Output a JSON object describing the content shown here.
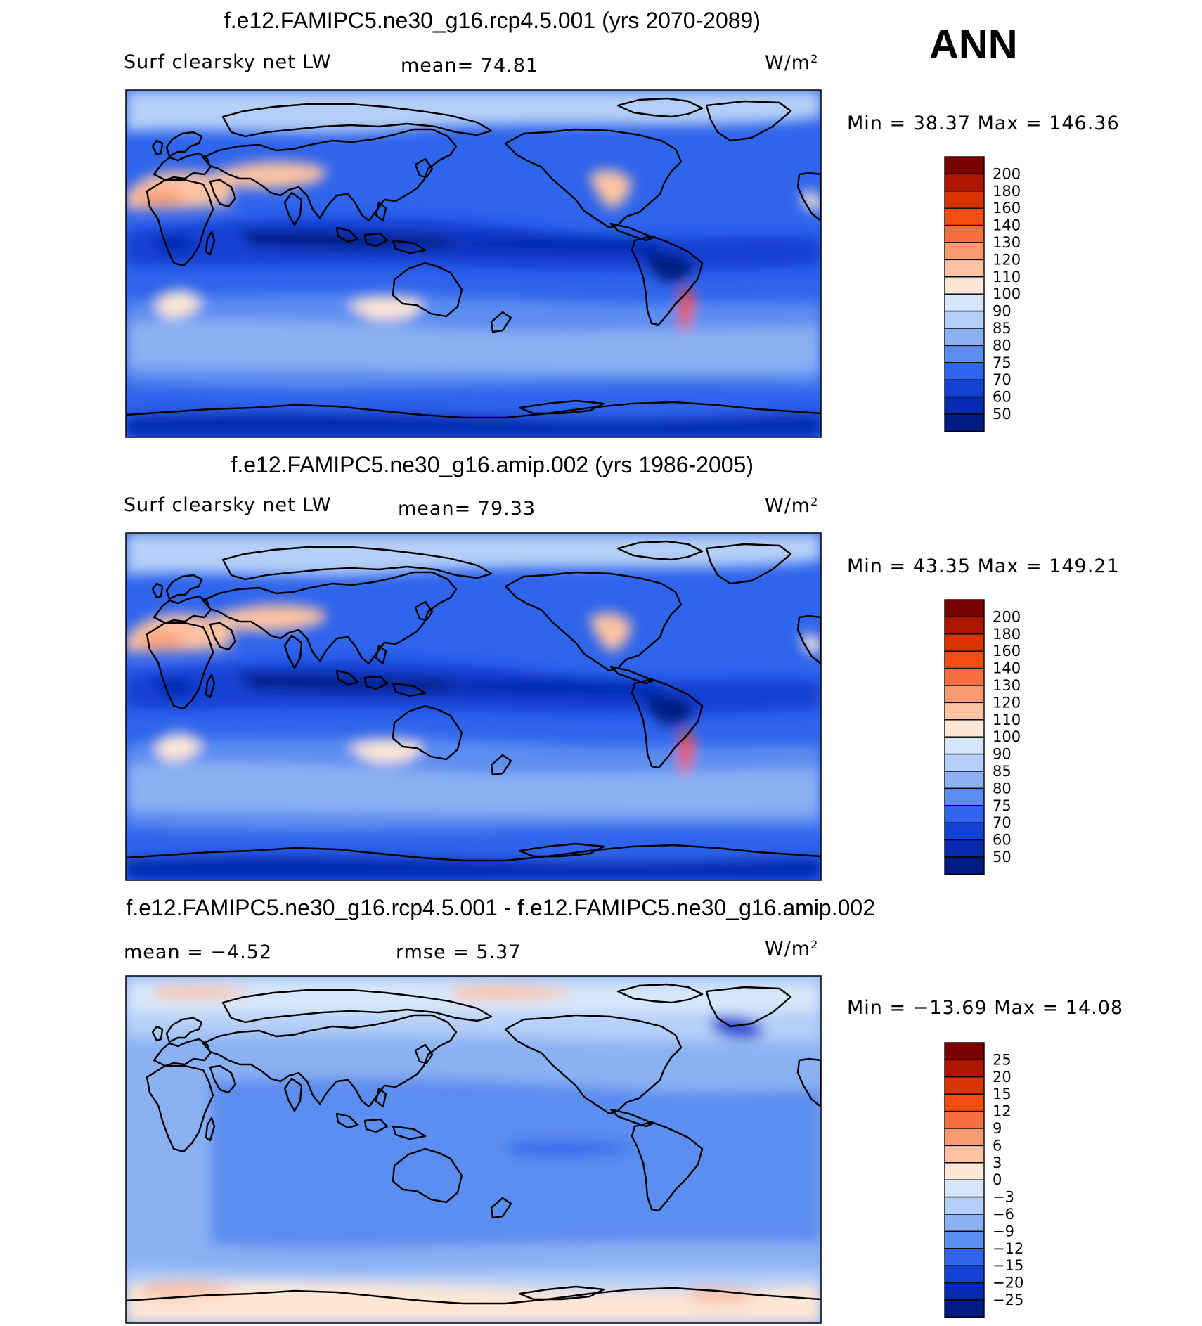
{
  "season": "ANN",
  "chart_data": [
    {
      "type": "heatmap",
      "title": "f.e12.FAMIPC5.ne30_g16.rcp4.5.001 (yrs 2070-2089)",
      "variable": "Surf clearsky net LW",
      "mean_label": "mean=",
      "mean": "74.81",
      "units": "W/m",
      "units_exp": "2",
      "min_label": "Min =",
      "min": "38.37",
      "max_label": "Max =",
      "max": "146.36",
      "levels": [
        "200",
        "180",
        "160",
        "140",
        "130",
        "120",
        "110",
        "100",
        "90",
        "85",
        "80",
        "75",
        "70",
        "60",
        "50"
      ],
      "colors": [
        "#7a0000",
        "#ad1700",
        "#d93300",
        "#f74c12",
        "#f96e3f",
        "#fa9a72",
        "#fdc3a3",
        "#fde7d6",
        "#d7e7fb",
        "#b4cff8",
        "#8bb1f3",
        "#5b8df0",
        "#2f64ec",
        "#1241d3",
        "#062bb1",
        "#001b82"
      ],
      "field": "annual-mean-pattern"
    },
    {
      "type": "heatmap",
      "title": "f.e12.FAMIPC5.ne30_g16.amip.002 (yrs 1986-2005)",
      "variable": "Surf clearsky net LW",
      "mean_label": "mean=",
      "mean": "79.33",
      "units": "W/m",
      "units_exp": "2",
      "min_label": "Min =",
      "min": "43.35",
      "max_label": "Max =",
      "max": "149.21",
      "levels": [
        "200",
        "180",
        "160",
        "140",
        "130",
        "120",
        "110",
        "100",
        "90",
        "85",
        "80",
        "75",
        "70",
        "60",
        "50"
      ],
      "colors": [
        "#7a0000",
        "#ad1700",
        "#d93300",
        "#f74c12",
        "#f96e3f",
        "#fa9a72",
        "#fdc3a3",
        "#fde7d6",
        "#d7e7fb",
        "#b4cff8",
        "#8bb1f3",
        "#5b8df0",
        "#2f64ec",
        "#1241d3",
        "#062bb1",
        "#001b82"
      ],
      "field": "annual-mean-pattern"
    },
    {
      "type": "heatmap",
      "title": "f.e12.FAMIPC5.ne30_g16.rcp4.5.001 - f.e12.FAMIPC5.ne30_g16.amip.002",
      "mean_label": "mean =",
      "mean": "−4.52",
      "rmse_label": "rmse =",
      "rmse": "5.37",
      "units": "W/m",
      "units_exp": "2",
      "min_label": "Min =",
      "min": "−13.69",
      "max_label": "Max =",
      "max": "14.08",
      "levels": [
        "25",
        "20",
        "15",
        "12",
        "9",
        "6",
        "3",
        "0",
        "−3",
        "−6",
        "−9",
        "−12",
        "−15",
        "−20",
        "−25"
      ],
      "colors": [
        "#7a0000",
        "#ad1700",
        "#d93300",
        "#f74c12",
        "#f96e3f",
        "#fa9a72",
        "#fdc3a3",
        "#fde7d6",
        "#d7e7fb",
        "#b4cff8",
        "#8bb1f3",
        "#5b8df0",
        "#2f64ec",
        "#1241d3",
        "#062bb1",
        "#001b82"
      ],
      "field": "difference-pattern"
    }
  ]
}
